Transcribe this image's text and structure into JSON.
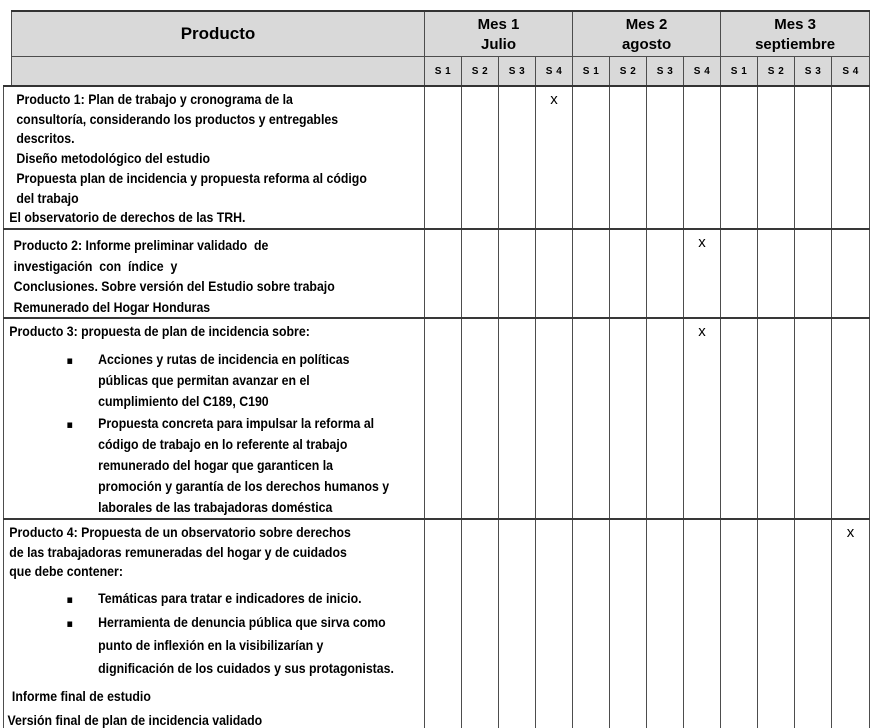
{
  "page": {
    "background": "#ffffff"
  },
  "table": {
    "colors": {
      "header_fill": "#d9d9d9",
      "border": "#4d4d4d",
      "text": "#000000"
    },
    "bullet_char": "▪",
    "header": {
      "product_col": "Producto",
      "months": [
        {
          "name": "Mes 1",
          "subname": "Julio",
          "weeks": [
            "S 1",
            "S 2",
            "S 3",
            "S 4"
          ]
        },
        {
          "name": "Mes 2",
          "subname": "agosto",
          "weeks": [
            "S 1",
            "S 2",
            "S 3",
            "S 4"
          ]
        },
        {
          "name": "Mes 3",
          "subname": "septiembre",
          "weeks": [
            "S 1",
            "S 2",
            "S 3",
            "S 4"
          ]
        }
      ]
    },
    "rows": [
      {
        "id": "producto-1",
        "blocks": [
          {
            "type": "p",
            "lines": [
              "Producto 1: Plan de trabajo y cronograma de la",
              "consultoría, considerando los productos y entregables",
              "descritos.",
              "Diseño metodológico del estudio",
              "Propuesta plan de incidencia y propuesta reforma al código",
              "del trabajo"
            ]
          },
          {
            "type": "p",
            "lines": [
              "El observatorio de derechos de las TRH."
            ]
          }
        ],
        "marks": [
          "",
          "",
          "",
          "x",
          "",
          "",
          "",
          "",
          "",
          "",
          "",
          ""
        ]
      },
      {
        "id": "producto-2",
        "blocks": [
          {
            "type": "p",
            "lines": [
              "Producto 2: Informe preliminar validado  de",
              "investigación  con  índice  y",
              "Conclusiones. Sobre versión del Estudio sobre trabajo",
              "Remunerado del Hogar Honduras"
            ]
          }
        ],
        "marks": [
          "",
          "",
          "",
          "",
          "",
          "",
          "",
          "x",
          "",
          "",
          "",
          ""
        ]
      },
      {
        "id": "producto-3",
        "blocks": [
          {
            "type": "p",
            "lines": [
              "Producto 3: propuesta de plan de incidencia sobre:"
            ]
          },
          {
            "type": "bullet",
            "lines": [
              "Acciones y rutas de incidencia en políticas",
              "públicas que permitan avanzar en el",
              "cumplimiento del C189, C190"
            ]
          },
          {
            "type": "bullet",
            "lines": [
              "Propuesta concreta para impulsar la reforma al",
              "código de trabajo en lo referente al trabajo",
              "remunerado del hogar que garanticen la",
              "promoción y garantía de los derechos humanos y",
              "laborales de las trabajadoras doméstica"
            ]
          }
        ],
        "marks": [
          "",
          "",
          "",
          "",
          "",
          "",
          "",
          "x",
          "",
          "",
          "",
          ""
        ]
      },
      {
        "id": "producto-4",
        "blocks": [
          {
            "type": "p",
            "lines": [
              "Producto 4: Propuesta de un observatorio sobre derechos",
              "de las trabajadoras remuneradas del hogar y de cuidados",
              "que debe contener:"
            ]
          },
          {
            "type": "bullet",
            "lines": [
              "Temáticas para tratar e indicadores de inicio."
            ]
          },
          {
            "type": "bullet",
            "lines": [
              "Herramienta de denuncia pública que sirva como",
              "punto de inflexión en la visibilizarían y",
              "dignificación de los cuidados y sus protagonistas."
            ]
          },
          {
            "type": "p",
            "lines": [
              "Informe final de estudio"
            ]
          },
          {
            "type": "p",
            "lines": [
              "Versión final de plan de incidencia validado"
            ]
          }
        ],
        "marks": [
          "",
          "",
          "",
          "",
          "",
          "",
          "",
          "",
          "",
          "",
          "",
          "x"
        ]
      }
    ]
  }
}
